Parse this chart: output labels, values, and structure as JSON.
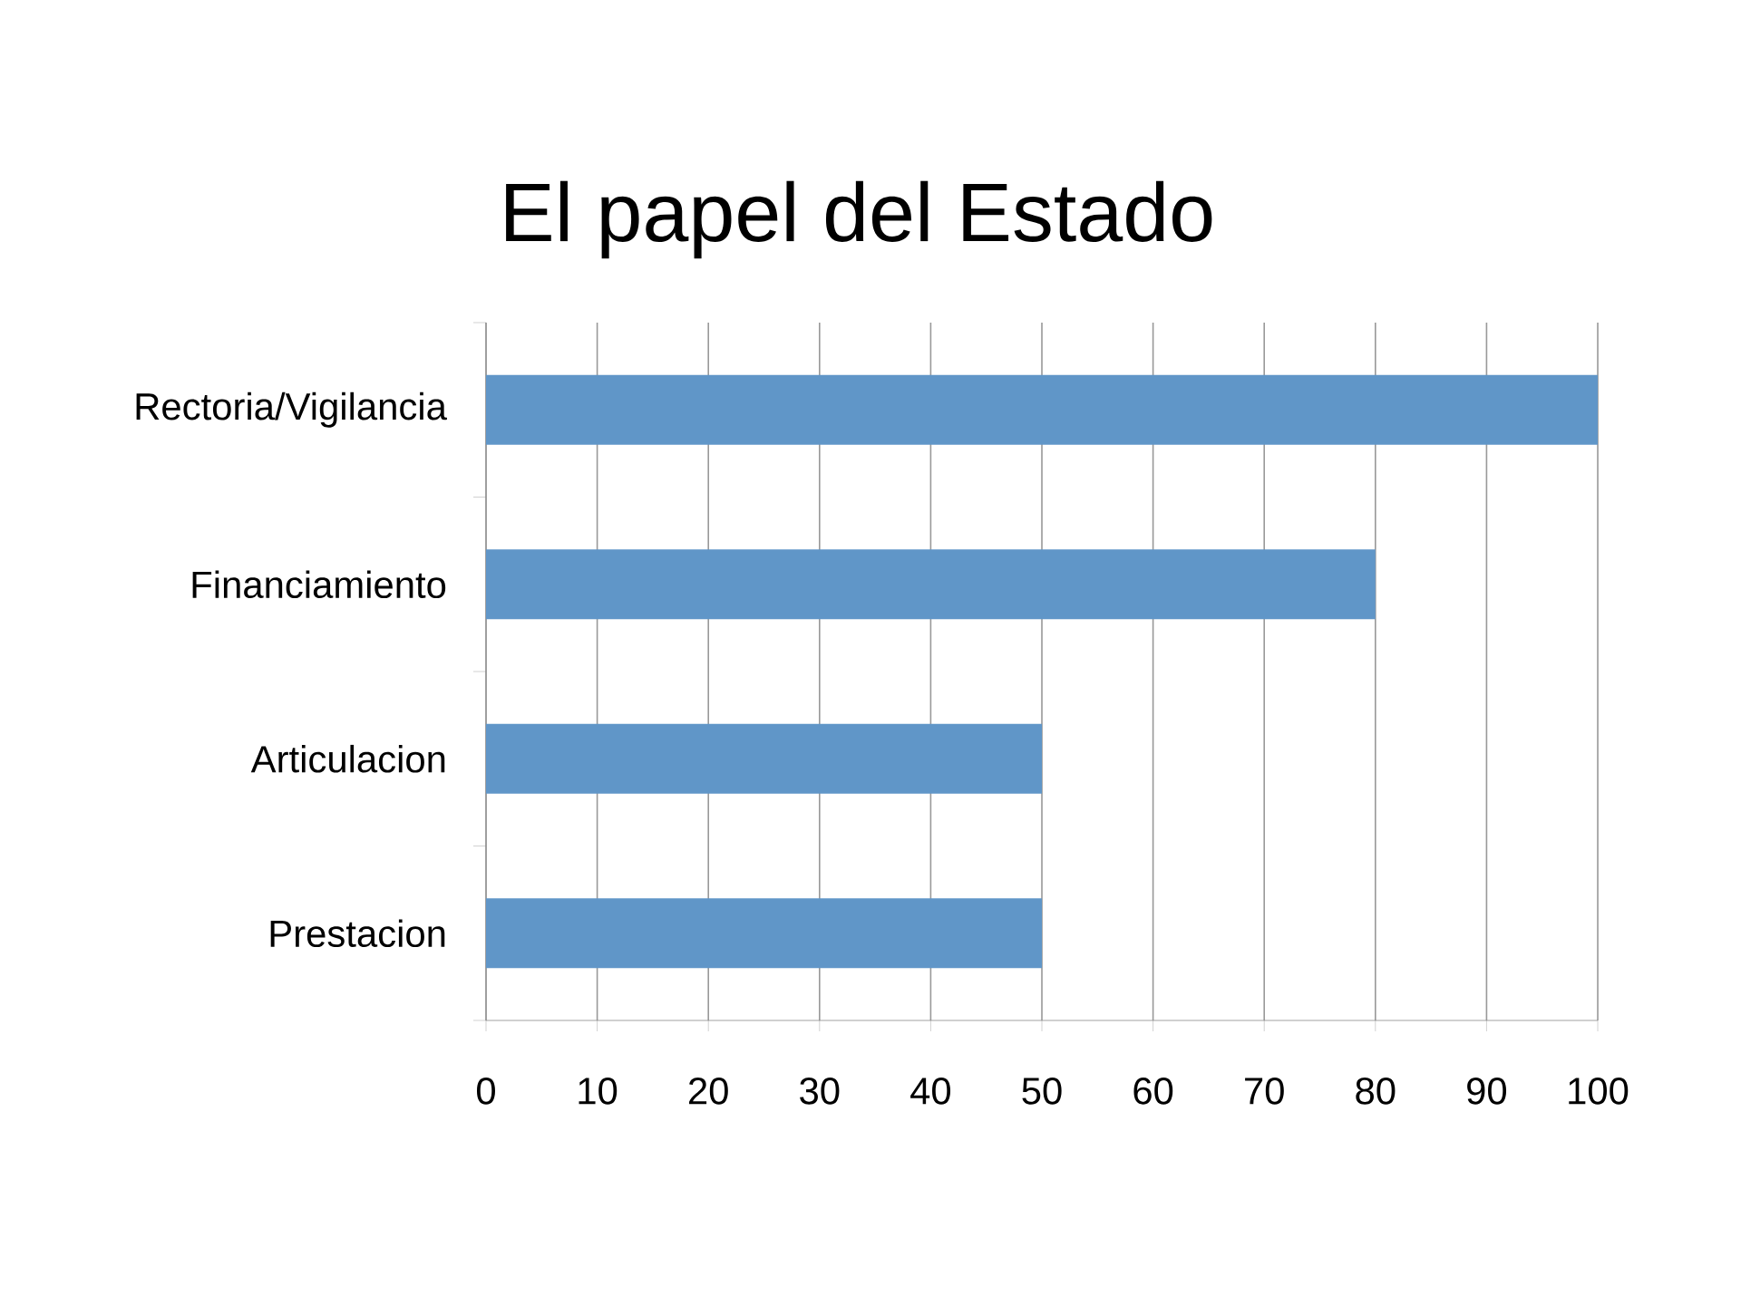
{
  "chart_data": {
    "type": "bar",
    "orientation": "horizontal",
    "title": "El papel del Estado",
    "categories": [
      "Rectoria/Vigilancia",
      "Financiamiento",
      "Articulacion",
      "Prestacion"
    ],
    "values": [
      100,
      80,
      50,
      50
    ],
    "color": "#6096c8",
    "xlim": [
      0,
      100
    ],
    "xticks": [
      0,
      10,
      20,
      30,
      40,
      50,
      60,
      70,
      80,
      90,
      100
    ],
    "grid": "x"
  }
}
